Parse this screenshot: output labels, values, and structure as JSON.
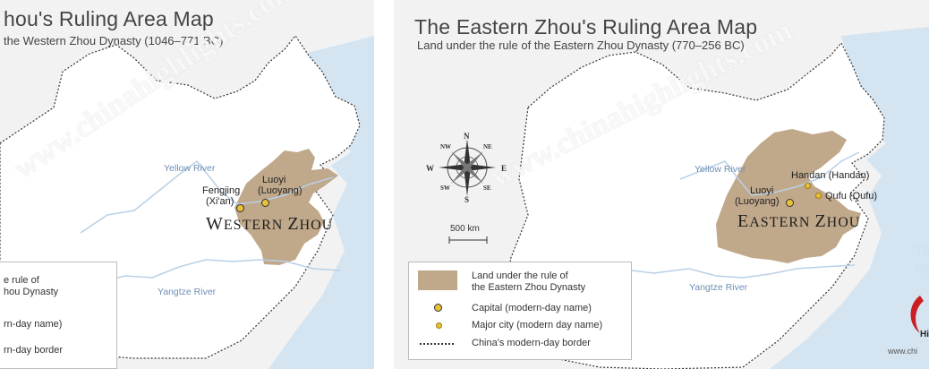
{
  "left": {
    "title": "hou's Ruling Area Map",
    "subtitle": "the Western Zhou Dynasty (1046–771 BC)",
    "watermark": "www.chinahighlights.com",
    "rivers": {
      "yellow": "Yellow River",
      "yangtze": "Yangtze River"
    },
    "cities": {
      "fengjing": "Fengjing",
      "fengjing_modern": "(Xi'an)",
      "luoyi": "Luoyi",
      "luoyi_modern": "(Luoyang)"
    },
    "dynasty_label_1": "W",
    "dynasty_label_2": "ESTERN ",
    "dynasty_label_3": "Z",
    "dynasty_label_4": "HOU",
    "legend": {
      "area_line1": "e rule of",
      "area_line2": "hou Dynasty",
      "capital": "rn-day name)",
      "border": "rn-day border"
    }
  },
  "right": {
    "title": "The Eastern Zhou's Ruling Area Map",
    "subtitle": "Land under the rule of the Eastern Zhou Dynasty (770–256 BC)",
    "watermark": "www.chinahighlights.com",
    "compass": {
      "n": "N",
      "s": "S",
      "e": "E",
      "w": "W",
      "ne": "NE",
      "nw": "NW",
      "se": "SE",
      "sw": "SW"
    },
    "scale": "500 km",
    "rivers": {
      "yellow": "Yellow River",
      "yangtze": "Yangtze River"
    },
    "cities": {
      "handan": "Handan (Handan)",
      "qufu": "Qufu (Qufu)",
      "luoyi": "Luoyi",
      "luoyi_modern": "(Luoyang)"
    },
    "dynasty_label_1": "E",
    "dynasty_label_2": "ASTERN ",
    "dynasty_label_3": "Z",
    "dynasty_label_4": "HOU",
    "legend": {
      "area_line1": "Land under the rule of",
      "area_line2": "the Eastern Zhou Dynasty",
      "capital": "Capital (modern-day name)",
      "major_city": "Major city (modern day name)",
      "border": "China's modern-day border"
    },
    "edge_text_1": "Th",
    "edge_text_2": "Oc",
    "logo_text": "Hi",
    "footer_url": "www.chi"
  },
  "colors": {
    "land": "#ffffff",
    "background": "#f2f2f2",
    "sea": "#d4e4f1",
    "territory": "#c0a88a",
    "river": "#b9d0e6",
    "border": "#333333",
    "capital": "#e8c13a",
    "logo": "#cc1f24"
  }
}
